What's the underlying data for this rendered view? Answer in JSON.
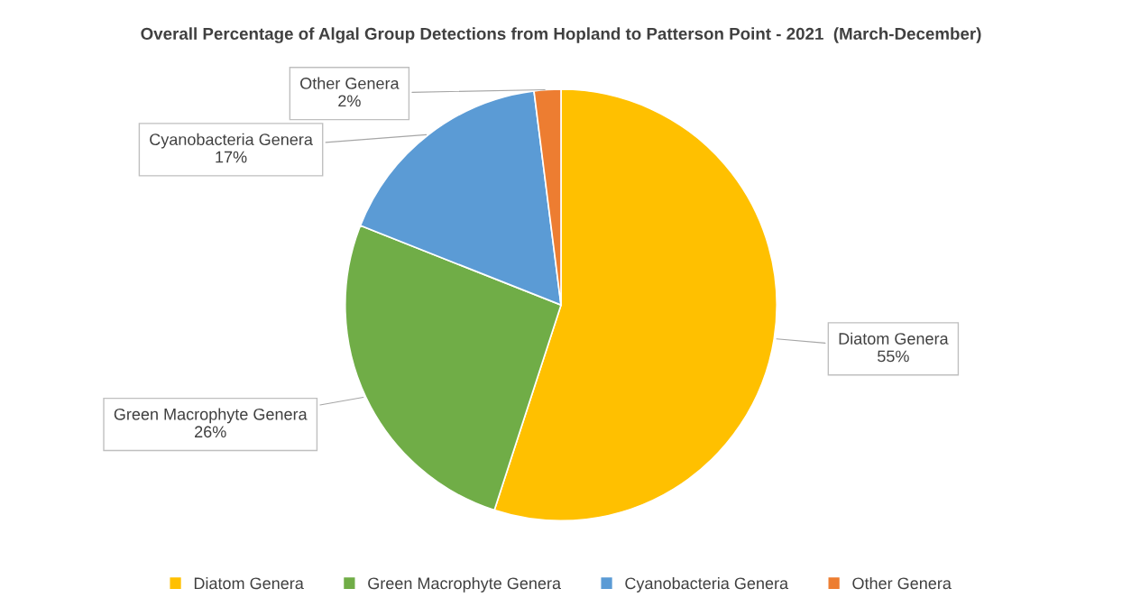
{
  "chart_data": {
    "type": "pie",
    "title": "Overall Percentage of Algal Group Detections from Hopland to Patterson Point - 2021  (March-December)",
    "categories": [
      "Diatom Genera",
      "Green Macrophyte Genera",
      "Cyanobacteria Genera",
      "Other Genera"
    ],
    "values": [
      55,
      26,
      17,
      2
    ],
    "colors": [
      "#ffc000",
      "#70ad47",
      "#5b9bd5",
      "#ed7d31"
    ],
    "value_labels": [
      "55%",
      "26%",
      "17%",
      "2%"
    ],
    "legend": "bottom"
  }
}
